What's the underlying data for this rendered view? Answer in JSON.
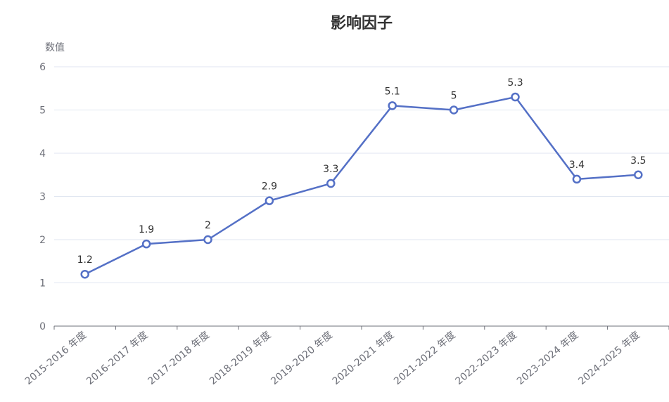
{
  "chart_data": {
    "type": "line",
    "title": "影响因子",
    "xlabel": "",
    "ylabel": "数值",
    "categories": [
      "2015-2016 年度",
      "2016-2017 年度",
      "2017-2018 年度",
      "2018-2019 年度",
      "2019-2020 年度",
      "2020-2021 年度",
      "2021-2022 年度",
      "2022-2023 年度",
      "2023-2024 年度",
      "2024-2025 年度"
    ],
    "series": [
      {
        "values": [
          1.2,
          1.9,
          2,
          2.9,
          3.3,
          5.1,
          5,
          5.3,
          3.4,
          3.5
        ]
      }
    ],
    "yticks": [
      0,
      1,
      2,
      3,
      4,
      5,
      6
    ],
    "ylim": [
      0,
      6
    ],
    "grid": true,
    "legend": "none",
    "colors": {
      "line": "#5470c6",
      "grid": "#e0e6f1",
      "axis": "#6e7079",
      "title": "#333333"
    }
  }
}
